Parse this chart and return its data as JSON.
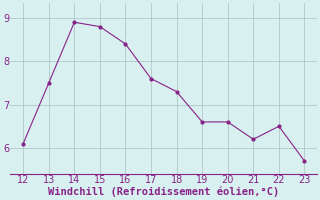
{
  "x": [
    12,
    13,
    14,
    15,
    16,
    17,
    18,
    19,
    20,
    21,
    22,
    23
  ],
  "y": [
    6.1,
    7.5,
    8.9,
    8.8,
    8.4,
    7.6,
    7.3,
    6.6,
    6.6,
    6.2,
    6.5,
    5.7
  ],
  "line_color": "#882288",
  "marker": ".",
  "marker_size": 4,
  "background_color": "#d8f0f0",
  "grid_color": "#b0c8c8",
  "xlabel": "Windchill (Refroidissement éolien,°C)",
  "xlabel_color": "#882288",
  "tick_color": "#882288",
  "xlim": [
    11.5,
    23.5
  ],
  "ylim": [
    5.4,
    9.35
  ],
  "xticks": [
    12,
    13,
    14,
    15,
    16,
    17,
    18,
    19,
    20,
    21,
    22,
    23
  ],
  "yticks": [
    6,
    7,
    8,
    9
  ],
  "tick_fontsize": 7,
  "xlabel_fontsize": 7.5
}
